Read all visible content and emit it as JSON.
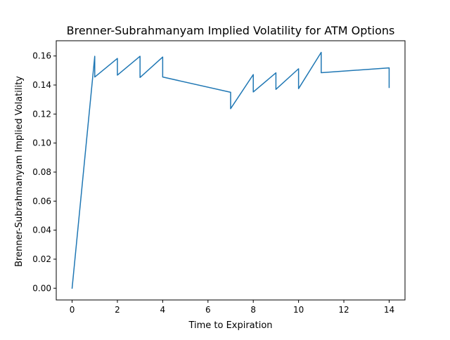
{
  "chart_data": {
    "type": "line",
    "title": "Brenner-Subrahmanyam Implied Volatility for ATM Options",
    "xlabel": "Time to Expiration",
    "ylabel": "Brenner-Subrahmanyam Implied Volatility",
    "xlim": [
      -0.7,
      14.7
    ],
    "ylim": [
      -0.0081,
      0.1705
    ],
    "xticks": [
      0,
      2,
      4,
      6,
      8,
      10,
      12,
      14
    ],
    "xtick_labels": [
      "0",
      "2",
      "4",
      "6",
      "8",
      "10",
      "12",
      "14"
    ],
    "yticks": [
      0.0,
      0.02,
      0.04,
      0.06,
      0.08,
      0.1,
      0.12,
      0.14,
      0.16
    ],
    "ytick_labels": [
      "0.00",
      "0.02",
      "0.04",
      "0.06",
      "0.08",
      "0.10",
      "0.12",
      "0.14",
      "0.16"
    ],
    "grid": false,
    "color": "#1f77b4",
    "series": [
      {
        "x": [
          0,
          1,
          1,
          2,
          2,
          3,
          3,
          4,
          4,
          7,
          7,
          8,
          8,
          9,
          9,
          10,
          10,
          11,
          11,
          14,
          14
        ],
        "y": [
          0.0,
          0.1598,
          0.1455,
          0.1583,
          0.1468,
          0.1598,
          0.1452,
          0.1593,
          0.1455,
          0.135,
          0.1237,
          0.1472,
          0.1352,
          0.1484,
          0.137,
          0.1512,
          0.1375,
          0.1625,
          0.1485,
          0.1518,
          0.1383
        ]
      }
    ]
  }
}
